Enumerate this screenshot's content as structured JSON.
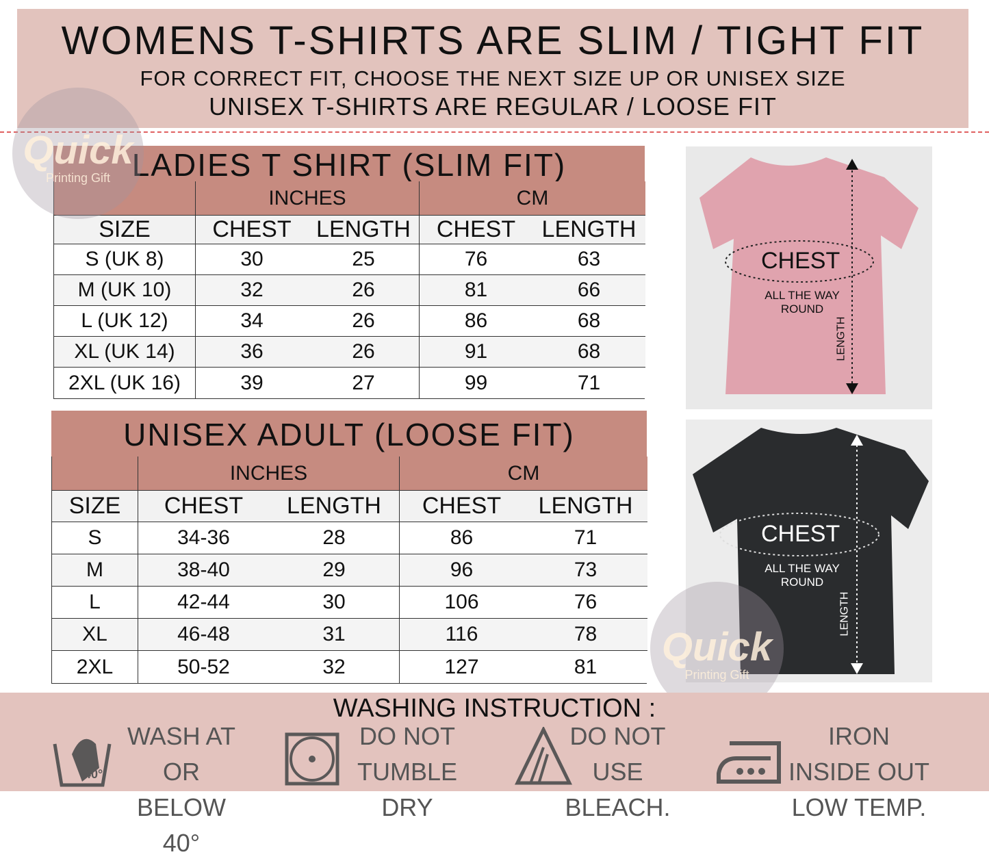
{
  "banner": {
    "title": "WOMENS T-SHIRTS ARE SLIM / TIGHT FIT",
    "line1": "FOR CORRECT FIT, CHOOSE THE NEXT SIZE UP OR UNISEX SIZE",
    "line2": "UNISEX T-SHIRTS ARE REGULAR / LOOSE FIT"
  },
  "watermark": {
    "brand": "Quick",
    "sub": "Printing Gift"
  },
  "ladies": {
    "title": "LADIES T SHIRT (SLIM FIT)",
    "groups": [
      "INCHES",
      "CM"
    ],
    "headers": [
      "SIZE",
      "CHEST",
      "LENGTH",
      "CHEST",
      "LENGTH"
    ],
    "rows": [
      [
        "S (UK 8)",
        "30",
        "25",
        "76",
        "63"
      ],
      [
        "M (UK 10)",
        "32",
        "26",
        "81",
        "66"
      ],
      [
        "L (UK 12)",
        "34",
        "26",
        "86",
        "68"
      ],
      [
        "XL (UK 14)",
        "36",
        "26",
        "91",
        "68"
      ],
      [
        "2XL (UK 16)",
        "39",
        "27",
        "99",
        "71"
      ]
    ]
  },
  "unisex": {
    "title": "UNISEX ADULT (LOOSE FIT)",
    "groups": [
      "INCHES",
      "CM"
    ],
    "headers": [
      "SIZE",
      "CHEST",
      "LENGTH",
      "CHEST",
      "LENGTH"
    ],
    "rows": [
      [
        "S",
        "34-36",
        "28",
        "86",
        "71"
      ],
      [
        "M",
        "38-40",
        "29",
        "96",
        "73"
      ],
      [
        "L",
        "42-44",
        "30",
        "106",
        "76"
      ],
      [
        "XL",
        "46-48",
        "31",
        "116",
        "78"
      ],
      [
        "2XL",
        "50-52",
        "32",
        "127",
        "81"
      ]
    ]
  },
  "shirts": {
    "chest": "CHEST",
    "round": "ALL THE WAY ROUND",
    "length": "LENGTH",
    "pink": "#e0a3ae",
    "black": "#2a2c2e"
  },
  "washing": {
    "title": "WASHING INSTRUCTION :",
    "items": [
      [
        "WASH AT OR",
        "BELOW 40°"
      ],
      [
        "DO  NOT",
        "TUMBLE DRY"
      ],
      [
        "DO NOT USE",
        "BLEACH."
      ],
      [
        "IRON INSIDE OUT",
        "LOW TEMP."
      ]
    ],
    "temp": "40°"
  },
  "colors": {
    "banner": "#e2c3bd",
    "header": "#c68b80",
    "band": "#e3c3be"
  }
}
